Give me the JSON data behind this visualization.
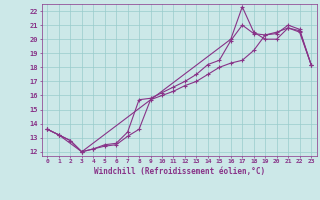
{
  "xlabel": "Windchill (Refroidissement éolien,°C)",
  "bg_color": "#cce8e8",
  "grid_color": "#99cccc",
  "line_color": "#883388",
  "xmin": -0.5,
  "xmax": 23.5,
  "ymin": 11.7,
  "ymax": 22.5,
  "yticks": [
    12,
    13,
    14,
    15,
    16,
    17,
    18,
    19,
    20,
    21,
    22
  ],
  "xticks": [
    0,
    1,
    2,
    3,
    4,
    5,
    6,
    7,
    8,
    9,
    10,
    11,
    12,
    13,
    14,
    15,
    16,
    17,
    18,
    19,
    20,
    21,
    22,
    23
  ],
  "line1_x": [
    0,
    1,
    2,
    3,
    4,
    5,
    6,
    7,
    8,
    9,
    10,
    11,
    12,
    13,
    14,
    15,
    16,
    17,
    18,
    19,
    20,
    21,
    22,
    23
  ],
  "line1_y": [
    13.6,
    13.2,
    12.8,
    12.0,
    12.2,
    12.4,
    12.5,
    13.1,
    13.6,
    15.7,
    16.0,
    16.3,
    16.7,
    17.0,
    17.5,
    18.0,
    18.3,
    18.5,
    19.2,
    20.3,
    20.5,
    20.8,
    20.6,
    18.2
  ],
  "line2_x": [
    0,
    1,
    2,
    3,
    4,
    5,
    6,
    7,
    8,
    9,
    10,
    11,
    12,
    13,
    14,
    15,
    16,
    17,
    18,
    19,
    20,
    21,
    22,
    23
  ],
  "line2_y": [
    13.6,
    13.2,
    12.8,
    12.0,
    12.2,
    12.5,
    12.6,
    13.4,
    15.7,
    15.8,
    16.2,
    16.6,
    17.0,
    17.5,
    18.2,
    18.5,
    19.9,
    21.0,
    20.4,
    20.3,
    20.4,
    21.0,
    20.7,
    18.2
  ],
  "line3_x": [
    0,
    1,
    3,
    16,
    17,
    18,
    19,
    20,
    21,
    22,
    23
  ],
  "line3_y": [
    13.6,
    13.2,
    12.0,
    20.0,
    22.3,
    20.5,
    20.0,
    20.0,
    20.8,
    20.5,
    18.2
  ]
}
